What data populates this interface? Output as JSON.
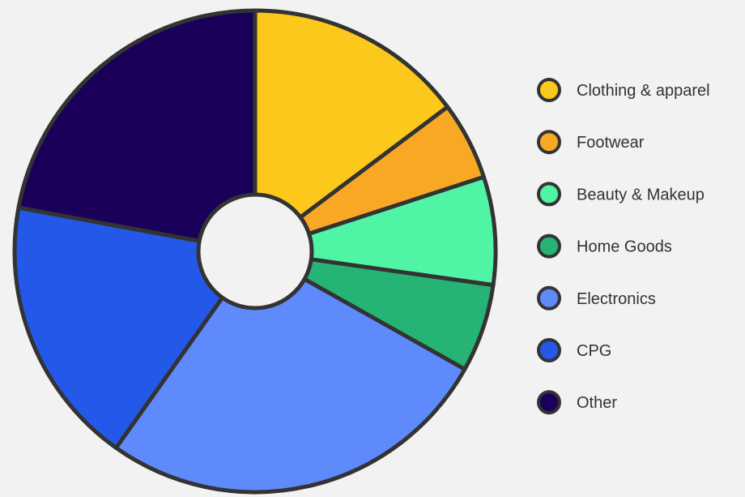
{
  "chart_data": {
    "type": "pie",
    "style": "donut",
    "title": "",
    "legend_position": "right",
    "categories": [
      "Clothing & apparel",
      "Footwear",
      "Beauty & Makeup",
      "Home Goods",
      "Electronics",
      "CPG",
      "Other"
    ],
    "values": [
      15.5,
      5.5,
      7.6,
      6.2,
      28.0,
      19.0,
      23.2
    ],
    "colors": [
      "#FCC81B",
      "#F9A825",
      "#4FF4A4",
      "#25B474",
      "#5F8AFB",
      "#2458E8",
      "#1A0059"
    ],
    "outline_color": "#333333"
  }
}
